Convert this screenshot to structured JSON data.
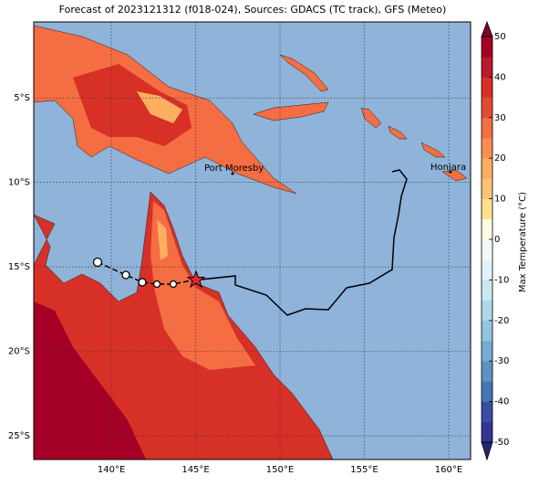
{
  "title": "Forecast of 2023121312 (f018-024), Sources: GDACS (TC track), GFS (Meteo)",
  "map": {
    "lonlim": [
      135.4,
      161.3
    ],
    "latlim": [
      -26.4,
      -0.5
    ],
    "lonticks": [
      {
        "value": 140,
        "label": "140°E"
      },
      {
        "value": 145,
        "label": "145°E"
      },
      {
        "value": 150,
        "label": "150°E"
      },
      {
        "value": 155,
        "label": "155°E"
      },
      {
        "value": 160,
        "label": "160°E"
      }
    ],
    "latticks": [
      {
        "value": -5,
        "label": "5°S"
      },
      {
        "value": -10,
        "label": "10°S"
      },
      {
        "value": -15,
        "label": "15°S"
      },
      {
        "value": -20,
        "label": "20°S"
      },
      {
        "value": -25,
        "label": "25°S"
      }
    ],
    "places": [
      "Port Moresby",
      "Honiara"
    ]
  },
  "colorbar": {
    "label": "Max Temperature (°C)",
    "lim": [
      -50,
      50
    ],
    "ticks": [
      -50,
      -40,
      -30,
      -20,
      -10,
      0,
      10,
      20,
      30,
      40,
      50
    ],
    "colors": [
      "#313695",
      "#3b4da0",
      "#4575b4",
      "#6190c2",
      "#74add1",
      "#92c5de",
      "#abd9e9",
      "#cbe8f1",
      "#e0f3f8",
      "#f2faf5",
      "#fffbe0",
      "#fee090",
      "#fdc374",
      "#fdae61",
      "#f88e52",
      "#f46d43",
      "#e34a33",
      "#d73027",
      "#bb1a2b",
      "#a50026"
    ]
  }
}
